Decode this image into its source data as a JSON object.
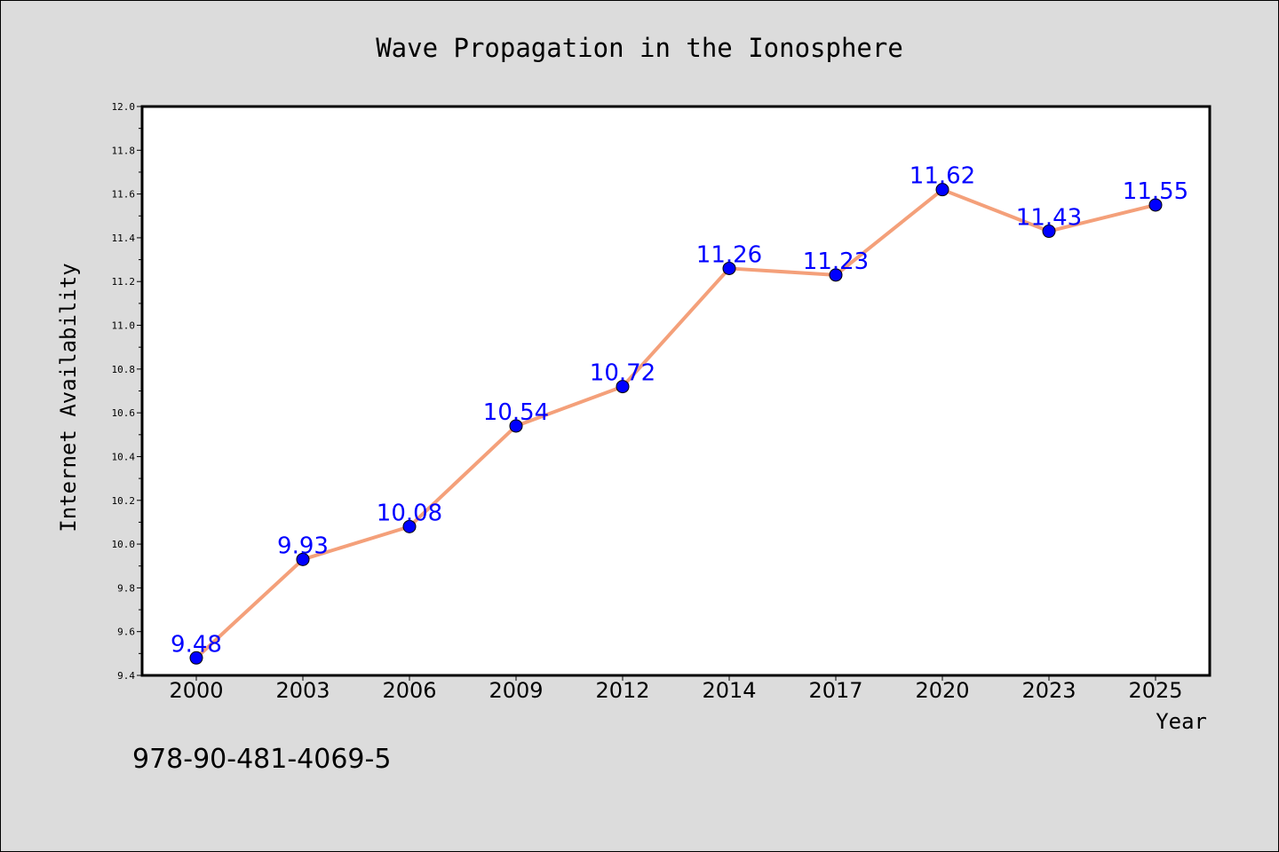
{
  "chart_data": {
    "type": "line",
    "title": "Wave Propagation in the Ionosphere",
    "xlabel": "Year",
    "ylabel": "Internet Availability",
    "categories": [
      "2000",
      "2003",
      "2006",
      "2009",
      "2012",
      "2014",
      "2017",
      "2020",
      "2023",
      "2025"
    ],
    "series": [
      {
        "values": [
          9.48,
          9.93,
          10.08,
          10.54,
          10.72,
          11.26,
          11.23,
          11.62,
          11.43,
          11.55
        ],
        "line_color": "#f4a07a",
        "marker_color": "#0000ff"
      }
    ],
    "data_labels": [
      "9.48",
      "9.93",
      "10.08",
      "10.54",
      "10.72",
      "11.26",
      "11.23",
      "11.62",
      "11.43",
      "11.55"
    ],
    "ylim": [
      9.4,
      12.0
    ],
    "y_ticks": [
      "9.4",
      "9.6",
      "9.8",
      "10.0",
      "10.2",
      "10.4",
      "10.6",
      "10.8",
      "11.0",
      "11.2",
      "11.4",
      "11.6",
      "11.8",
      "12.0"
    ],
    "grid": false,
    "legend": "none",
    "annotation": "978-90-481-4069-5"
  }
}
